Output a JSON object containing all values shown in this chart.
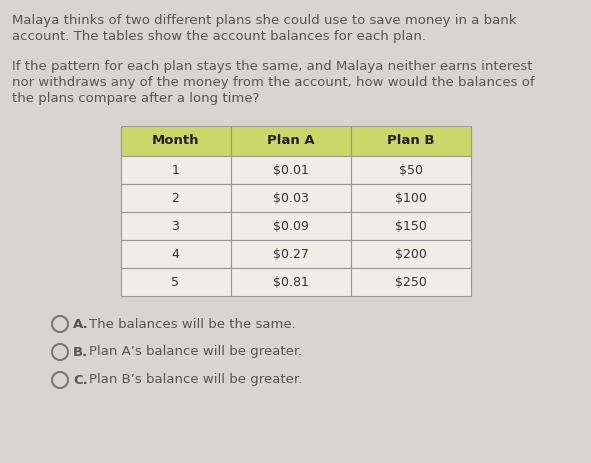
{
  "background_color": "#d8d5cf",
  "intro_text_line1": "Malaya thinks of two different plans she could use to save money in a bank",
  "intro_text_line2": "account. The tables show the account balances for each plan.",
  "question_line1": "If the pattern for each plan stays the same, and Malaya neither earns interest",
  "question_line2": "nor withdraws any of the money from the account, how would the balances of",
  "question_line3": "the plans compare after a long time?",
  "table_header": [
    "Month",
    "Plan A",
    "Plan B"
  ],
  "table_data": [
    [
      "1",
      "$0.01",
      "$50"
    ],
    [
      "2",
      "$0.03",
      "$100"
    ],
    [
      "3",
      "$0.09",
      "$150"
    ],
    [
      "4",
      "$0.27",
      "$200"
    ],
    [
      "5",
      "$0.81",
      "$250"
    ]
  ],
  "header_bg": "#c8d96a",
  "row_bg": "#f0ede6",
  "table_border": "#999999",
  "choices": [
    [
      "A.",
      "  The balances will be the same."
    ],
    [
      "B.",
      "  Plan A’s balance will be greater."
    ],
    [
      "C.",
      "  Plan B’s balance will be greater."
    ]
  ],
  "text_color": "#555555",
  "choice_text_color": "#555555"
}
